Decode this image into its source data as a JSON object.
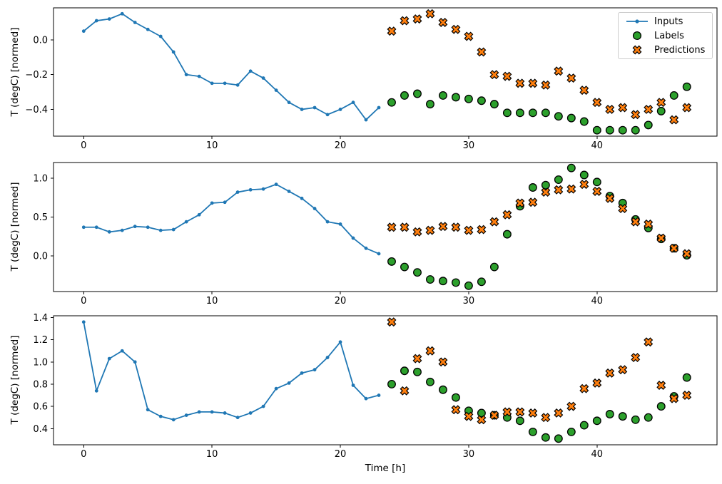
{
  "figure": {
    "xlabel": "Time [h]",
    "ylabel": "T (degC) [normed]",
    "xlim": [
      -2.35,
      49.35
    ],
    "x_ticks": [
      0,
      10,
      20,
      30,
      40
    ],
    "x_tick_labels": [
      "0",
      "10",
      "20",
      "30",
      "40"
    ],
    "grid": false,
    "legend": {
      "position": "upper right",
      "items": [
        {
          "label": "Inputs",
          "marker": "line-dot",
          "color": "#1f77b4"
        },
        {
          "label": "Labels",
          "marker": "circle",
          "color": "#2ca02c"
        },
        {
          "label": "Predictions",
          "marker": "x",
          "color": "#ff7f0e"
        }
      ]
    },
    "colors": {
      "inputs": "#1f77b4",
      "labels": "#2ca02c",
      "predictions": "#ff7f0e",
      "marker_edge": "#000000",
      "spine": "#000000"
    }
  },
  "chart_data": [
    {
      "type": "line",
      "subplot": 1,
      "ylabel": "T (degC) [normed]",
      "ylim": [
        -0.554,
        0.184
      ],
      "y_ticks": [
        0.0,
        -0.2,
        -0.4
      ],
      "y_tick_labels": [
        "0.0",
        "−0.2",
        "−0.4"
      ],
      "series": [
        {
          "name": "Inputs",
          "marker": "line-dot",
          "x": [
            0,
            1,
            2,
            3,
            4,
            5,
            6,
            7,
            8,
            9,
            10,
            11,
            12,
            13,
            14,
            15,
            16,
            17,
            18,
            19,
            20,
            21,
            22,
            23
          ],
          "values": [
            0.05,
            0.11,
            0.12,
            0.15,
            0.1,
            0.06,
            0.02,
            -0.07,
            -0.2,
            -0.21,
            -0.25,
            -0.25,
            -0.26,
            -0.18,
            -0.22,
            -0.29,
            -0.36,
            -0.4,
            -0.39,
            -0.43,
            -0.4,
            -0.36,
            -0.46,
            -0.39
          ]
        },
        {
          "name": "Labels",
          "marker": "circle",
          "x": [
            24,
            25,
            26,
            27,
            28,
            29,
            30,
            31,
            32,
            33,
            34,
            35,
            36,
            37,
            38,
            39,
            40,
            41,
            42,
            43,
            44,
            45,
            46,
            47
          ],
          "values": [
            -0.36,
            -0.32,
            -0.31,
            -0.37,
            -0.32,
            -0.33,
            -0.34,
            -0.35,
            -0.37,
            -0.42,
            -0.42,
            -0.42,
            -0.42,
            -0.44,
            -0.45,
            -0.47,
            -0.52,
            -0.52,
            -0.52,
            -0.52,
            -0.49,
            -0.41,
            -0.32,
            -0.27
          ]
        },
        {
          "name": "Predictions",
          "marker": "x",
          "x": [
            24,
            25,
            26,
            27,
            28,
            29,
            30,
            31,
            32,
            33,
            34,
            35,
            36,
            37,
            38,
            39,
            40,
            41,
            42,
            43,
            44,
            45,
            46,
            47
          ],
          "values": [
            0.05,
            0.11,
            0.12,
            0.15,
            0.1,
            0.06,
            0.02,
            -0.07,
            -0.2,
            -0.21,
            -0.25,
            -0.25,
            -0.26,
            -0.18,
            -0.22,
            -0.29,
            -0.36,
            -0.4,
            -0.39,
            -0.43,
            -0.4,
            -0.36,
            -0.46,
            -0.39
          ]
        }
      ]
    },
    {
      "type": "line",
      "subplot": 2,
      "ylabel": "T (degC) [normed]",
      "ylim": [
        -0.455,
        1.2
      ],
      "y_ticks": [
        1.0,
        0.5,
        0.0
      ],
      "y_tick_labels": [
        "1.0",
        "0.5",
        "0.0"
      ],
      "series": [
        {
          "name": "Inputs",
          "marker": "line-dot",
          "x": [
            0,
            1,
            2,
            3,
            4,
            5,
            6,
            7,
            8,
            9,
            10,
            11,
            12,
            13,
            14,
            15,
            16,
            17,
            18,
            19,
            20,
            21,
            22,
            23
          ],
          "values": [
            0.37,
            0.37,
            0.31,
            0.33,
            0.38,
            0.37,
            0.33,
            0.34,
            0.44,
            0.53,
            0.68,
            0.69,
            0.82,
            0.85,
            0.86,
            0.92,
            0.83,
            0.74,
            0.61,
            0.44,
            0.41,
            0.23,
            0.1,
            0.03
          ]
        },
        {
          "name": "Labels",
          "marker": "circle",
          "x": [
            24,
            25,
            26,
            27,
            28,
            29,
            30,
            31,
            32,
            33,
            34,
            35,
            36,
            37,
            38,
            39,
            40,
            41,
            42,
            43,
            44,
            45,
            46,
            47
          ],
          "values": [
            -0.07,
            -0.14,
            -0.21,
            -0.3,
            -0.32,
            -0.34,
            -0.38,
            -0.33,
            -0.14,
            0.28,
            0.64,
            0.88,
            0.91,
            0.98,
            1.13,
            1.04,
            0.95,
            0.77,
            0.68,
            0.47,
            0.36,
            0.22,
            0.1,
            0.01
          ]
        },
        {
          "name": "Predictions",
          "marker": "x",
          "x": [
            24,
            25,
            26,
            27,
            28,
            29,
            30,
            31,
            32,
            33,
            34,
            35,
            36,
            37,
            38,
            39,
            40,
            41,
            42,
            43,
            44,
            45,
            46,
            47
          ],
          "values": [
            0.37,
            0.37,
            0.31,
            0.33,
            0.38,
            0.37,
            0.33,
            0.34,
            0.44,
            0.53,
            0.68,
            0.69,
            0.82,
            0.85,
            0.86,
            0.92,
            0.83,
            0.74,
            0.61,
            0.44,
            0.41,
            0.23,
            0.1,
            0.03
          ]
        }
      ]
    },
    {
      "type": "line",
      "subplot": 3,
      "ylabel": "T (degC) [normed]",
      "ylim": [
        0.254,
        1.416
      ],
      "y_ticks": [
        1.4,
        1.2,
        1.0,
        0.8,
        0.6,
        0.4
      ],
      "y_tick_labels": [
        "1.4",
        "1.2",
        "1.0",
        "0.8",
        "0.6",
        "0.4"
      ],
      "series": [
        {
          "name": "Inputs",
          "marker": "line-dot",
          "x": [
            0,
            1,
            2,
            3,
            4,
            5,
            6,
            7,
            8,
            9,
            10,
            11,
            12,
            13,
            14,
            15,
            16,
            17,
            18,
            19,
            20,
            21,
            22,
            23
          ],
          "values": [
            1.36,
            0.74,
            1.03,
            1.1,
            1.0,
            0.57,
            0.51,
            0.48,
            0.52,
            0.55,
            0.55,
            0.54,
            0.5,
            0.54,
            0.6,
            0.76,
            0.81,
            0.9,
            0.93,
            1.04,
            1.18,
            0.79,
            0.67,
            0.7
          ]
        },
        {
          "name": "Labels",
          "marker": "circle",
          "x": [
            24,
            25,
            26,
            27,
            28,
            29,
            30,
            31,
            32,
            33,
            34,
            35,
            36,
            37,
            38,
            39,
            40,
            41,
            42,
            43,
            44,
            45,
            46,
            47
          ],
          "values": [
            0.8,
            0.92,
            0.91,
            0.82,
            0.75,
            0.68,
            0.56,
            0.54,
            0.52,
            0.5,
            0.47,
            0.37,
            0.32,
            0.31,
            0.37,
            0.43,
            0.47,
            0.53,
            0.51,
            0.48,
            0.5,
            0.6,
            0.69,
            0.86
          ]
        },
        {
          "name": "Predictions",
          "marker": "x",
          "x": [
            24,
            25,
            26,
            27,
            28,
            29,
            30,
            31,
            32,
            33,
            34,
            35,
            36,
            37,
            38,
            39,
            40,
            41,
            42,
            43,
            44,
            45,
            46,
            47
          ],
          "values": [
            1.36,
            0.74,
            1.03,
            1.1,
            1.0,
            0.57,
            0.51,
            0.48,
            0.52,
            0.55,
            0.55,
            0.54,
            0.5,
            0.54,
            0.6,
            0.76,
            0.81,
            0.9,
            0.93,
            1.04,
            1.18,
            0.79,
            0.67,
            0.7
          ]
        }
      ]
    }
  ]
}
